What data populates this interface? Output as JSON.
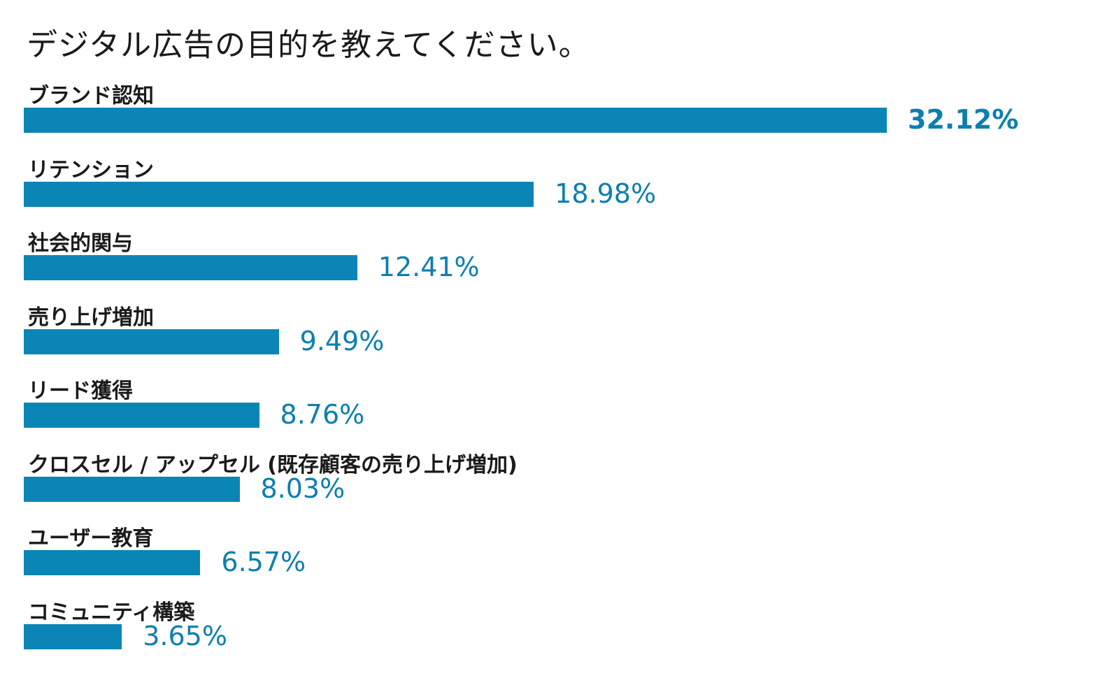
{
  "chart_data": {
    "type": "bar",
    "orientation": "horizontal",
    "title": "デジタル広告の目的を教えてください。",
    "categories": [
      "ブランド認知",
      "リテンション",
      "社会的関与",
      "売り上げ増加",
      "リード獲得",
      "クロスセル / アップセル (既存顧客の売り上げ増加)",
      "ユーザー教育",
      "コミュニティ構築"
    ],
    "values": [
      32.12,
      18.98,
      12.41,
      9.49,
      8.76,
      8.03,
      6.57,
      3.65
    ],
    "value_labels": [
      "32.12%",
      "18.98%",
      "12.41%",
      "9.49%",
      "8.76%",
      "8.03%",
      "6.57%",
      "3.65%"
    ],
    "unit": "%",
    "bar_color": "#0b85b5",
    "label_color": "#0b7fb0",
    "grid": false,
    "legend": false
  }
}
